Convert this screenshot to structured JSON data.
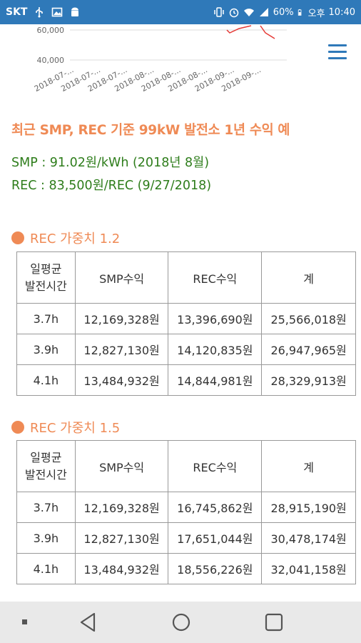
{
  "status_bar": {
    "carrier": "SKT",
    "battery": "60%",
    "ampm": "오후",
    "time": "10:40"
  },
  "chart": {
    "y_ticks": [
      "60,000",
      "40,000"
    ],
    "x_ticks": [
      "2018-07-...",
      "2018-07-...",
      "2018-07-...",
      "2018-08-...",
      "2018-08-...",
      "2018-08-...",
      "2018-09-...",
      "2018-09-..."
    ],
    "line_color": "#e53935"
  },
  "heading": "최근 SMP, REC 기준 99kW 발전소 1년 수익 예",
  "smp_line": "SMP : 91.02원/kWh (2018년 8월)",
  "rec_line": "REC : 83,500원/REC (9/27/2018)",
  "section1": {
    "title": "REC 가중치 1.2",
    "headers": [
      "일평균\n발전시간",
      "SMP수익",
      "REC수익",
      "계"
    ],
    "rows": [
      [
        "3.7h",
        "12,169,328원",
        "13,396,690원",
        "25,566,018원"
      ],
      [
        "3.9h",
        "12,827,130원",
        "14,120,835원",
        "26,947,965원"
      ],
      [
        "4.1h",
        "13,484,932원",
        "14,844,981원",
        "28,329,913원"
      ]
    ]
  },
  "section2": {
    "title": "REC 가중치 1.5",
    "headers": [
      "일평균\n발전시간",
      "SMP수익",
      "REC수익",
      "계"
    ],
    "rows": [
      [
        "3.7h",
        "12,169,328원",
        "16,745,862원",
        "28,915,190원"
      ],
      [
        "3.9h",
        "12,827,130원",
        "17,651,044원",
        "30,478,174원"
      ],
      [
        "4.1h",
        "13,484,932원",
        "18,556,226원",
        "32,041,158원"
      ]
    ]
  },
  "colors": {
    "accent": "#ef8a55",
    "info_green": "#2e7d1b",
    "statusbar": "#2f79b9"
  }
}
